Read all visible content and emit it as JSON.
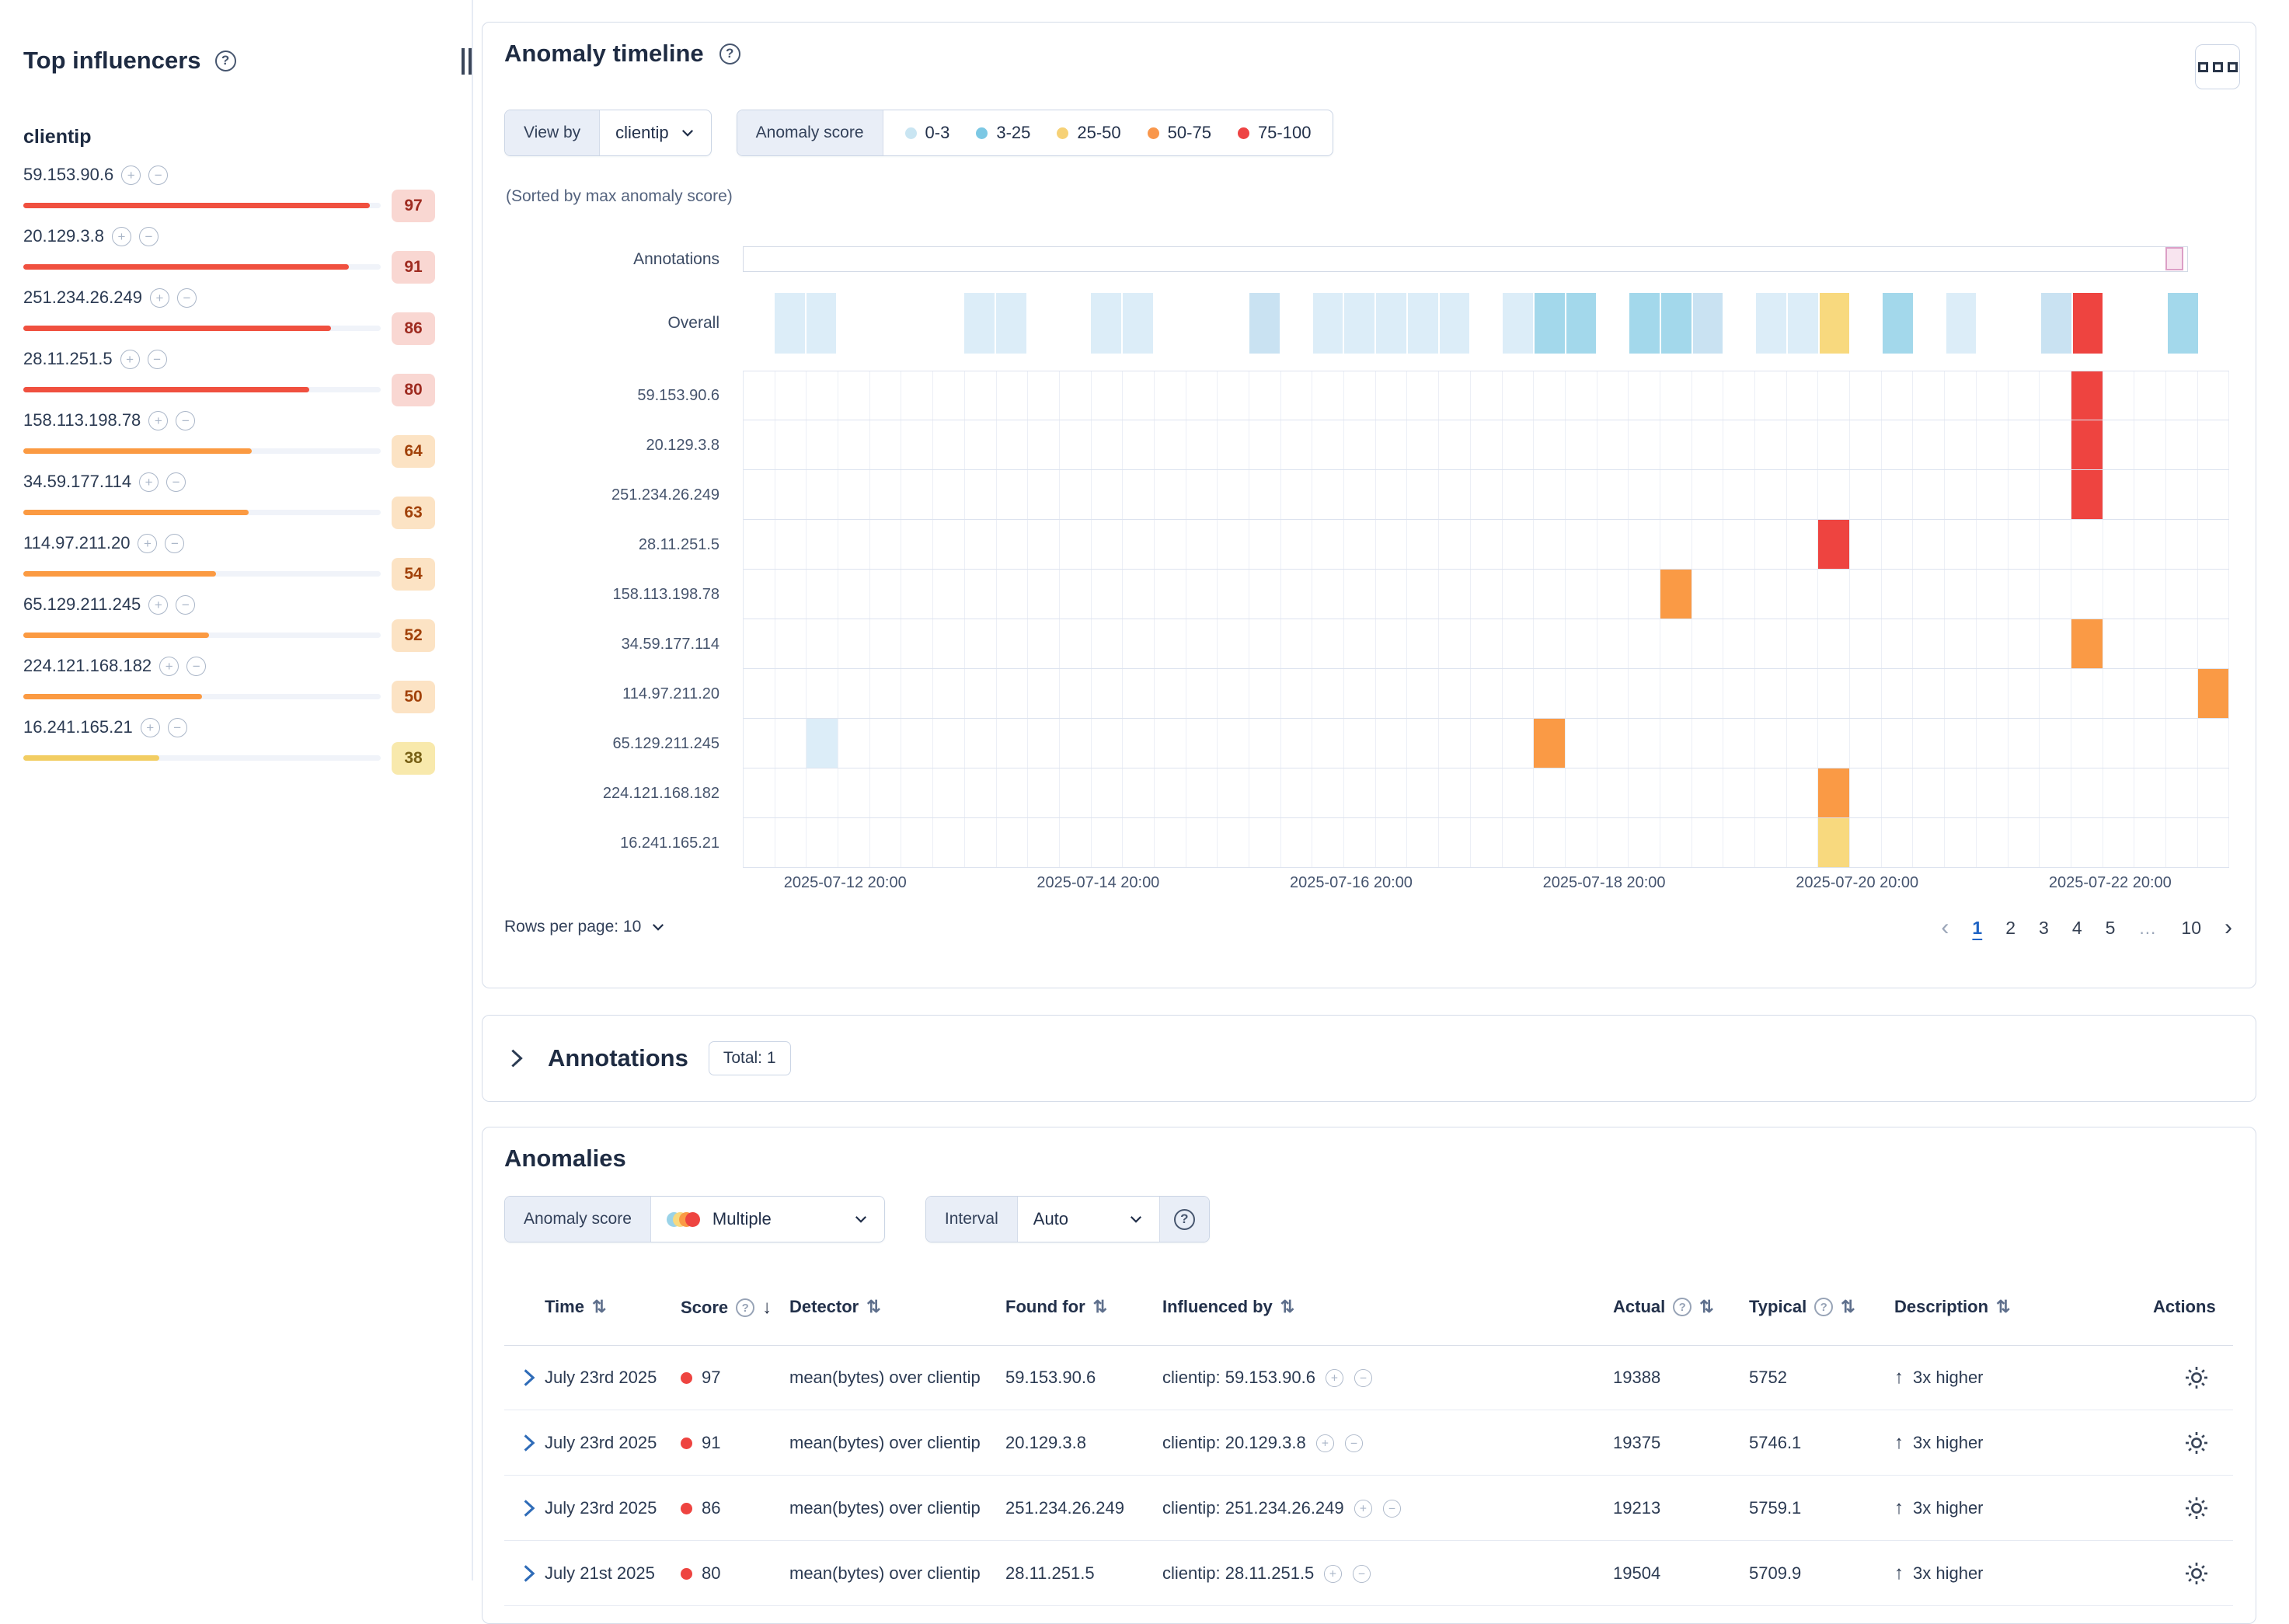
{
  "icons": {
    "help": "?",
    "plus": "+",
    "minus": "−",
    "sort_both": "⇅",
    "sort_down": "↓",
    "arrow_up": "↑",
    "prev": "‹",
    "next": "›"
  },
  "colors": {
    "cell": {
      "w": "#FFFFFF",
      "a": "#DCEDF8",
      "A": "#C9E2F2",
      "b": "#A3D8EB",
      "y": "#F8D97E",
      "o": "#FA9A45",
      "r": "#EE4440"
    }
  },
  "sidebar": {
    "title": "Top influencers",
    "field": "clientip",
    "influencers": [
      {
        "name": "59.153.90.6",
        "score": 97
      },
      {
        "name": "20.129.3.8",
        "score": 91
      },
      {
        "name": "251.234.26.249",
        "score": 86
      },
      {
        "name": "28.11.251.5",
        "score": 80
      },
      {
        "name": "158.113.198.78",
        "score": 64
      },
      {
        "name": "34.59.177.114",
        "score": 63
      },
      {
        "name": "114.97.211.20",
        "score": 54
      },
      {
        "name": "65.129.211.245",
        "score": 52
      },
      {
        "name": "224.121.168.182",
        "score": 50
      },
      {
        "name": "16.241.165.21",
        "score": 38
      }
    ]
  },
  "timeline": {
    "title": "Anomaly timeline",
    "view_by_label": "View by",
    "view_by_value": "clientip",
    "legend_label": "Anomaly score",
    "legend": [
      {
        "label": "0-3",
        "color": "#C9E5F2"
      },
      {
        "label": "3-25",
        "color": "#7CC8E4"
      },
      {
        "label": "25-50",
        "color": "#F6D176"
      },
      {
        "label": "50-75",
        "color": "#F9974C"
      },
      {
        "label": "75-100",
        "color": "#EE4343"
      }
    ],
    "sorted_note": "(Sorted by max anomaly score)",
    "annotations_label": "Annotations",
    "overall_label": "Overall",
    "overall_cells": [
      "w",
      "a",
      "a",
      "w",
      "w",
      "w",
      "w",
      "a",
      "a",
      "w",
      "w",
      "a",
      "a",
      "w",
      "w",
      "w",
      "A",
      "w",
      "a",
      "a",
      "a",
      "a",
      "a",
      "w",
      "a",
      "b",
      "b",
      "w",
      "b",
      "b",
      "A",
      "w",
      "a",
      "a",
      "y",
      "w",
      "b",
      "w",
      "a",
      "w",
      "w",
      "A",
      "r",
      "w",
      "w",
      "b",
      "w"
    ],
    "lanes": [
      {
        "label": "59.153.90.6",
        "cells": [
          {
            "col": 42,
            "color": "r"
          }
        ]
      },
      {
        "label": "20.129.3.8",
        "cells": [
          {
            "col": 42,
            "color": "r"
          }
        ]
      },
      {
        "label": "251.234.26.249",
        "cells": [
          {
            "col": 42,
            "color": "r"
          }
        ]
      },
      {
        "label": "28.11.251.5",
        "cells": [
          {
            "col": 34,
            "color": "r"
          }
        ]
      },
      {
        "label": "158.113.198.78",
        "cells": [
          {
            "col": 29,
            "color": "o"
          }
        ]
      },
      {
        "label": "34.59.177.114",
        "cells": [
          {
            "col": 42,
            "color": "o"
          }
        ]
      },
      {
        "label": "114.97.211.20",
        "cells": [
          {
            "col": 46,
            "color": "o"
          }
        ]
      },
      {
        "label": "65.129.211.245",
        "cells": [
          {
            "col": 2,
            "color": "a"
          },
          {
            "col": 25,
            "color": "o"
          }
        ]
      },
      {
        "label": "224.121.168.182",
        "cells": [
          {
            "col": 34,
            "color": "o"
          }
        ]
      },
      {
        "label": "16.241.165.21",
        "cells": [
          {
            "col": 34,
            "color": "y"
          }
        ]
      }
    ],
    "x_ticks": [
      {
        "label": "2025-07-12 20:00",
        "col": 2
      },
      {
        "label": "2025-07-14 20:00",
        "col": 10
      },
      {
        "label": "2025-07-16 20:00",
        "col": 18
      },
      {
        "label": "2025-07-18 20:00",
        "col": 26
      },
      {
        "label": "2025-07-20 20:00",
        "col": 34
      },
      {
        "label": "2025-07-22 20:00",
        "col": 42
      }
    ],
    "rows_per_page_label": "Rows per page: 10",
    "pagination": {
      "pages": [
        "1",
        "2",
        "3",
        "4",
        "5",
        "…",
        "10"
      ],
      "active": "1"
    }
  },
  "annotations_panel": {
    "title": "Annotations",
    "badge": "Total: 1"
  },
  "anomalies": {
    "title": "Anomalies",
    "score_label": "Anomaly score",
    "score_value": "Multiple",
    "interval_label": "Interval",
    "interval_value": "Auto",
    "table": {
      "columns": [
        {
          "key": "time",
          "label": "Time",
          "sort": "both"
        },
        {
          "key": "score",
          "label": "Score",
          "sort": "down",
          "help": true
        },
        {
          "key": "detector",
          "label": "Detector",
          "sort": "both"
        },
        {
          "key": "found_for",
          "label": "Found for",
          "sort": "both"
        },
        {
          "key": "influenced_by",
          "label": "Influenced by",
          "sort": "both"
        },
        {
          "key": "actual",
          "label": "Actual",
          "sort": "both",
          "help": true
        },
        {
          "key": "typical",
          "label": "Typical",
          "sort": "both",
          "help": true
        },
        {
          "key": "description",
          "label": "Description",
          "sort": "both"
        },
        {
          "key": "actions",
          "label": "Actions",
          "sort": "none"
        }
      ],
      "rows": [
        {
          "time": "July 23rd 2025",
          "score": "97",
          "detector": "mean(bytes) over clientip",
          "found_for": "59.153.90.6",
          "influenced_by": "clientip: 59.153.90.6",
          "actual": "19388",
          "typical": "5752",
          "description": "3x higher"
        },
        {
          "time": "July 23rd 2025",
          "score": "91",
          "detector": "mean(bytes) over clientip",
          "found_for": "20.129.3.8",
          "influenced_by": "clientip: 20.129.3.8",
          "actual": "19375",
          "typical": "5746.1",
          "description": "3x higher"
        },
        {
          "time": "July 23rd 2025",
          "score": "86",
          "detector": "mean(bytes) over clientip",
          "found_for": "251.234.26.249",
          "influenced_by": "clientip: 251.234.26.249",
          "actual": "19213",
          "typical": "5759.1",
          "description": "3x higher"
        },
        {
          "time": "July 21st 2025",
          "score": "80",
          "detector": "mean(bytes) over clientip",
          "found_for": "28.11.251.5",
          "influenced_by": "clientip: 28.11.251.5",
          "actual": "19504",
          "typical": "5709.9",
          "description": "3x higher"
        }
      ]
    }
  }
}
